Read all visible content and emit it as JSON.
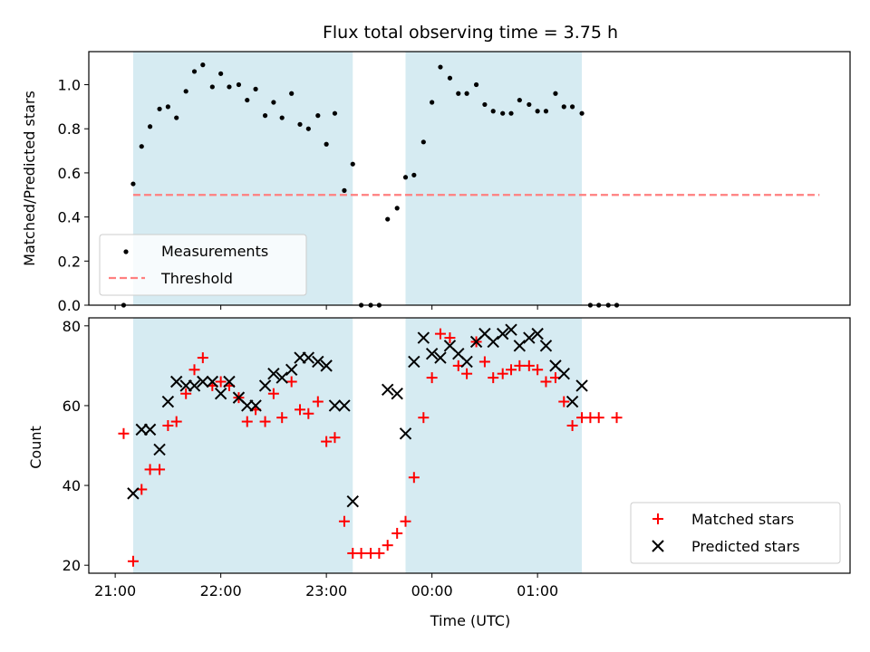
{
  "chart_data": [
    {
      "type": "scatter",
      "title": "Flux total observing time = 3.75 h",
      "xlabel": "",
      "ylabel": "Matched/Predicted stars",
      "ylim": [
        0,
        1.15
      ],
      "xlim": [
        -0.25,
        6.96
      ],
      "x_unit": "hours after 21:00 UTC",
      "yticks": [
        "0.0",
        "0.2",
        "0.4",
        "0.6",
        "0.8",
        "1.0"
      ],
      "grid": false,
      "legend_position": "lower-left",
      "shaded_intervals": [
        [
          0.17,
          2.25
        ],
        [
          2.75,
          4.42
        ]
      ],
      "shade_color": "#add8e6",
      "threshold": {
        "name": "Threshold",
        "y": 0.5,
        "x_range": [
          0.17,
          6.67
        ],
        "color": "#ff7f7f"
      },
      "series": [
        {
          "name": "Measurements",
          "color": "#000000",
          "marker": "dot",
          "points": [
            [
              0.08,
              0.0
            ],
            [
              0.17,
              0.55
            ],
            [
              0.25,
              0.72
            ],
            [
              0.33,
              0.81
            ],
            [
              0.42,
              0.89
            ],
            [
              0.5,
              0.9
            ],
            [
              0.58,
              0.85
            ],
            [
              0.67,
              0.97
            ],
            [
              0.75,
              1.06
            ],
            [
              0.83,
              1.09
            ],
            [
              0.92,
              0.99
            ],
            [
              1.0,
              1.05
            ],
            [
              1.08,
              0.99
            ],
            [
              1.17,
              1.0
            ],
            [
              1.25,
              0.93
            ],
            [
              1.33,
              0.98
            ],
            [
              1.42,
              0.86
            ],
            [
              1.5,
              0.92
            ],
            [
              1.58,
              0.85
            ],
            [
              1.67,
              0.96
            ],
            [
              1.75,
              0.82
            ],
            [
              1.83,
              0.8
            ],
            [
              1.92,
              0.86
            ],
            [
              2.0,
              0.73
            ],
            [
              2.08,
              0.87
            ],
            [
              2.17,
              0.52
            ],
            [
              2.25,
              0.64
            ],
            [
              2.33,
              0.0
            ],
            [
              2.42,
              0.0
            ],
            [
              2.5,
              0.0
            ],
            [
              2.58,
              0.39
            ],
            [
              2.67,
              0.44
            ],
            [
              2.75,
              0.58
            ],
            [
              2.83,
              0.59
            ],
            [
              2.92,
              0.74
            ],
            [
              3.0,
              0.92
            ],
            [
              3.08,
              1.08
            ],
            [
              3.17,
              1.03
            ],
            [
              3.25,
              0.96
            ],
            [
              3.33,
              0.96
            ],
            [
              3.42,
              1.0
            ],
            [
              3.5,
              0.91
            ],
            [
              3.58,
              0.88
            ],
            [
              3.67,
              0.87
            ],
            [
              3.75,
              0.87
            ],
            [
              3.83,
              0.93
            ],
            [
              3.92,
              0.91
            ],
            [
              4.0,
              0.88
            ],
            [
              4.08,
              0.88
            ],
            [
              4.17,
              0.96
            ],
            [
              4.25,
              0.9
            ],
            [
              4.33,
              0.9
            ],
            [
              4.42,
              0.87
            ],
            [
              4.5,
              0.0
            ],
            [
              4.58,
              0.0
            ],
            [
              4.67,
              0.0
            ],
            [
              4.75,
              0.0
            ]
          ]
        }
      ]
    },
    {
      "type": "scatter",
      "title": "",
      "xlabel": "Time (UTC)",
      "ylabel": "Count",
      "ylim": [
        18,
        82
      ],
      "xlim": [
        -0.25,
        6.96
      ],
      "x_unit": "hours after 21:00 UTC",
      "yticks": [
        "20",
        "40",
        "60",
        "80"
      ],
      "xticks": [
        "21:00",
        "22:00",
        "23:00",
        "00:00",
        "01:00"
      ],
      "grid": false,
      "legend_position": "lower-right",
      "shaded_intervals": [
        [
          0.17,
          2.25
        ],
        [
          2.75,
          4.42
        ]
      ],
      "shade_color": "#add8e6",
      "series": [
        {
          "name": "Matched stars",
          "color": "#ff0000",
          "marker": "plus",
          "points": [
            [
              0.08,
              53
            ],
            [
              0.17,
              21
            ],
            [
              0.25,
              39
            ],
            [
              0.33,
              44
            ],
            [
              0.42,
              44
            ],
            [
              0.5,
              55
            ],
            [
              0.58,
              56
            ],
            [
              0.67,
              63
            ],
            [
              0.75,
              69
            ],
            [
              0.83,
              72
            ],
            [
              0.92,
              65
            ],
            [
              1.0,
              66
            ],
            [
              1.08,
              65
            ],
            [
              1.17,
              62
            ],
            [
              1.25,
              56
            ],
            [
              1.33,
              59
            ],
            [
              1.42,
              56
            ],
            [
              1.5,
              63
            ],
            [
              1.58,
              57
            ],
            [
              1.67,
              66
            ],
            [
              1.75,
              59
            ],
            [
              1.83,
              58
            ],
            [
              1.92,
              61
            ],
            [
              2.0,
              51
            ],
            [
              2.08,
              52
            ],
            [
              2.17,
              31
            ],
            [
              2.25,
              23
            ],
            [
              2.33,
              23
            ],
            [
              2.42,
              23
            ],
            [
              2.5,
              23
            ],
            [
              2.58,
              25
            ],
            [
              2.67,
              28
            ],
            [
              2.75,
              31
            ],
            [
              2.83,
              42
            ],
            [
              2.92,
              57
            ],
            [
              3.0,
              67
            ],
            [
              3.08,
              78
            ],
            [
              3.17,
              77
            ],
            [
              3.25,
              70
            ],
            [
              3.33,
              68
            ],
            [
              3.42,
              76
            ],
            [
              3.5,
              71
            ],
            [
              3.58,
              67
            ],
            [
              3.67,
              68
            ],
            [
              3.75,
              69
            ],
            [
              3.83,
              70
            ],
            [
              3.92,
              70
            ],
            [
              4.0,
              69
            ],
            [
              4.08,
              66
            ],
            [
              4.17,
              67
            ],
            [
              4.25,
              61
            ],
            [
              4.33,
              55
            ],
            [
              4.42,
              57
            ],
            [
              4.5,
              57
            ],
            [
              4.58,
              57
            ],
            [
              4.75,
              57
            ]
          ]
        },
        {
          "name": "Predicted stars",
          "color": "#000000",
          "marker": "x",
          "points": [
            [
              0.17,
              38
            ],
            [
              0.25,
              54
            ],
            [
              0.33,
              54
            ],
            [
              0.42,
              49
            ],
            [
              0.5,
              61
            ],
            [
              0.58,
              66
            ],
            [
              0.67,
              65
            ],
            [
              0.75,
              65
            ],
            [
              0.83,
              66
            ],
            [
              0.92,
              66
            ],
            [
              1.0,
              63
            ],
            [
              1.08,
              66
            ],
            [
              1.17,
              62
            ],
            [
              1.25,
              60
            ],
            [
              1.33,
              60
            ],
            [
              1.42,
              65
            ],
            [
              1.5,
              68
            ],
            [
              1.58,
              67
            ],
            [
              1.67,
              69
            ],
            [
              1.75,
              72
            ],
            [
              1.83,
              72
            ],
            [
              1.92,
              71
            ],
            [
              2.0,
              70
            ],
            [
              2.08,
              60
            ],
            [
              2.17,
              60
            ],
            [
              2.25,
              36
            ],
            [
              2.58,
              64
            ],
            [
              2.67,
              63
            ],
            [
              2.75,
              53
            ],
            [
              2.83,
              71
            ],
            [
              2.92,
              77
            ],
            [
              3.0,
              73
            ],
            [
              3.08,
              72
            ],
            [
              3.17,
              75
            ],
            [
              3.25,
              73
            ],
            [
              3.33,
              71
            ],
            [
              3.42,
              76
            ],
            [
              3.5,
              78
            ],
            [
              3.58,
              76
            ],
            [
              3.67,
              78
            ],
            [
              3.75,
              79
            ],
            [
              3.83,
              75
            ],
            [
              3.92,
              77
            ],
            [
              4.0,
              78
            ],
            [
              4.08,
              75
            ],
            [
              4.17,
              70
            ],
            [
              4.25,
              68
            ],
            [
              4.33,
              61
            ],
            [
              4.42,
              65
            ]
          ]
        }
      ]
    }
  ]
}
